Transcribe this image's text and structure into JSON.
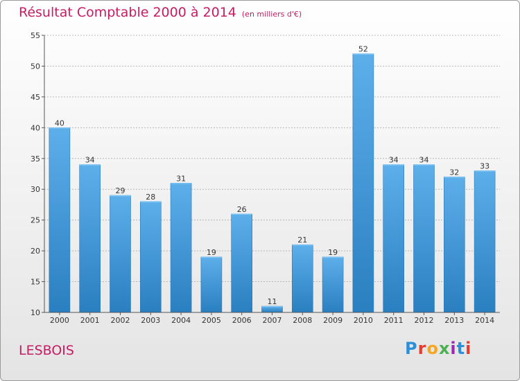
{
  "title": "Résultat Comptable 2000 à 2014",
  "subtitle": "(en milliers d'€)",
  "place": "LESBOIS",
  "logo": {
    "text": "Proxiti",
    "colors": [
      "#2f8fd6",
      "#e63b2e",
      "#f5a623",
      "#4caf50",
      "#9c27b0",
      "#2f8fd6",
      "#e63b2e"
    ]
  },
  "colors": {
    "title": "#c51c63",
    "bar_top": "#5dafea",
    "bar_bottom": "#2a7fc0",
    "grid": "#b8b8b8"
  },
  "chart_data": {
    "type": "bar",
    "title": "Résultat Comptable 2000 à 2014",
    "categories": [
      "2000",
      "2001",
      "2002",
      "2003",
      "2004",
      "2005",
      "2006",
      "2007",
      "2008",
      "2009",
      "2010",
      "2011",
      "2012",
      "2013",
      "2014"
    ],
    "values": [
      40,
      34,
      29,
      28,
      31,
      19,
      26,
      11,
      21,
      19,
      52,
      34,
      34,
      32,
      33
    ],
    "ylim": [
      10,
      55
    ],
    "yticks": [
      10,
      15,
      20,
      25,
      30,
      35,
      40,
      45,
      50,
      55
    ],
    "grid": true,
    "xlabel": "",
    "ylabel": ""
  }
}
